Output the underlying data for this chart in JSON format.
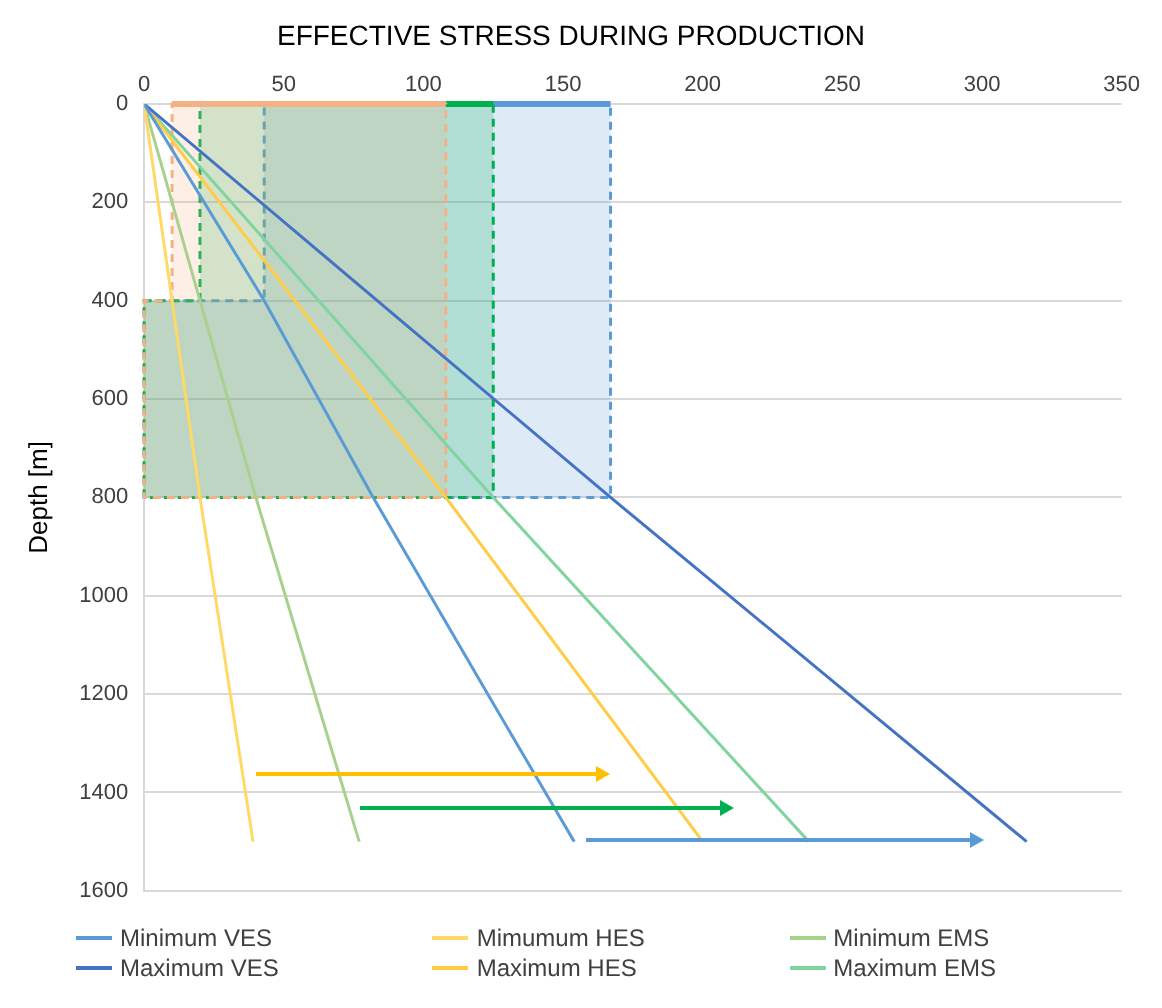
{
  "chart_data": {
    "type": "line",
    "title": "EFFECTIVE STRESS DURING PRODUCTION",
    "ylabel": "Depth [m]",
    "xlim": [
      0,
      350
    ],
    "xticks": [
      0,
      50,
      100,
      150,
      200,
      250,
      300,
      350
    ],
    "ylim": [
      1600,
      0
    ],
    "yticks": [
      0,
      200,
      400,
      600,
      800,
      1000,
      1200,
      1400,
      1600
    ],
    "grid": "y",
    "legend": "bottom",
    "series": [
      {
        "type": "area",
        "color": "#5b9bd5",
        "x": [
          43,
          167,
          167,
          0,
          0,
          43,
          43
        ],
        "values": [
          0,
          0,
          800,
          800,
          400,
          400,
          0
        ]
      },
      {
        "type": "area",
        "color": "#00b050",
        "x": [
          20,
          125,
          125,
          0,
          0,
          20,
          20
        ],
        "values": [
          0,
          0,
          800,
          800,
          400,
          400,
          0
        ]
      },
      {
        "type": "area",
        "color": "#f4b183",
        "x": [
          10,
          108,
          108,
          0,
          0,
          10,
          10
        ],
        "values": [
          0,
          0,
          800,
          800,
          400,
          400,
          0
        ]
      },
      {
        "name": "Minimum VES",
        "color": "#5b9bd5",
        "x": [
          0,
          43,
          82,
          123,
          154
        ],
        "values": [
          0,
          400,
          800,
          1200,
          1500
        ]
      },
      {
        "name": "Mimumum HES",
        "color": "#ffd966",
        "x": [
          0,
          20,
          39
        ],
        "values": [
          0,
          800,
          1500
        ]
      },
      {
        "name": "Minimum EMS",
        "color": "#a9d18e",
        "x": [
          0,
          40,
          77
        ],
        "values": [
          0,
          800,
          1500
        ]
      },
      {
        "name": "Maximum VES",
        "color": "#4472c4",
        "x": [
          0,
          167,
          316
        ],
        "values": [
          0,
          800,
          1500
        ]
      },
      {
        "name": "Maximum HES",
        "color": "#ffcc44",
        "x": [
          0,
          108,
          200
        ],
        "values": [
          0,
          800,
          1500
        ]
      },
      {
        "name": "Maximum EMS",
        "color": "#7fd4a0",
        "x": [
          0,
          125,
          238
        ],
        "values": [
          0,
          800,
          1500
        ]
      }
    ]
  }
}
